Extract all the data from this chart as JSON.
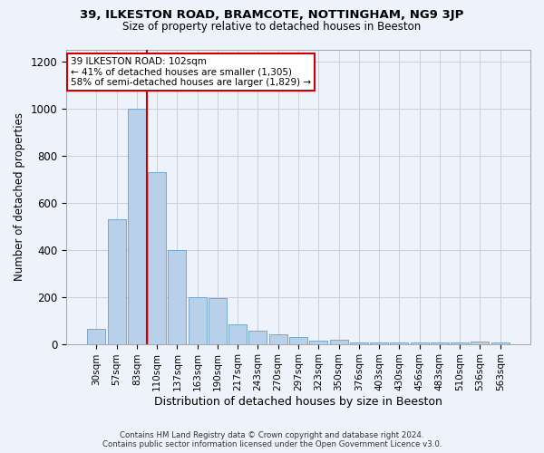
{
  "title_line1": "39, ILKESTON ROAD, BRAMCOTE, NOTTINGHAM, NG9 3JP",
  "title_line2": "Size of property relative to detached houses in Beeston",
  "xlabel": "Distribution of detached houses by size in Beeston",
  "ylabel": "Number of detached properties",
  "categories": [
    "30sqm",
    "57sqm",
    "83sqm",
    "110sqm",
    "137sqm",
    "163sqm",
    "190sqm",
    "217sqm",
    "243sqm",
    "270sqm",
    "297sqm",
    "323sqm",
    "350sqm",
    "376sqm",
    "403sqm",
    "430sqm",
    "456sqm",
    "483sqm",
    "510sqm",
    "536sqm",
    "563sqm"
  ],
  "values": [
    65,
    530,
    1000,
    730,
    400,
    200,
    195,
    85,
    55,
    40,
    30,
    15,
    18,
    5,
    5,
    5,
    5,
    5,
    5,
    10,
    5
  ],
  "bar_color": "#b8d0ea",
  "bar_edge_color": "#6a9fc8",
  "vline_color": "#cc0000",
  "vline_index": 2.5,
  "annotation_text": "39 ILKESTON ROAD: 102sqm\n← 41% of detached houses are smaller (1,305)\n58% of semi-detached houses are larger (1,829) →",
  "annotation_box_color": "#ffffff",
  "annotation_box_edge": "#cc0000",
  "ylim": [
    0,
    1250
  ],
  "yticks": [
    0,
    200,
    400,
    600,
    800,
    1000,
    1200
  ],
  "footer_line1": "Contains HM Land Registry data © Crown copyright and database right 2024.",
  "footer_line2": "Contains public sector information licensed under the Open Government Licence v3.0.",
  "background_color": "#eef2fb",
  "grid_color": "#c8d0e0"
}
